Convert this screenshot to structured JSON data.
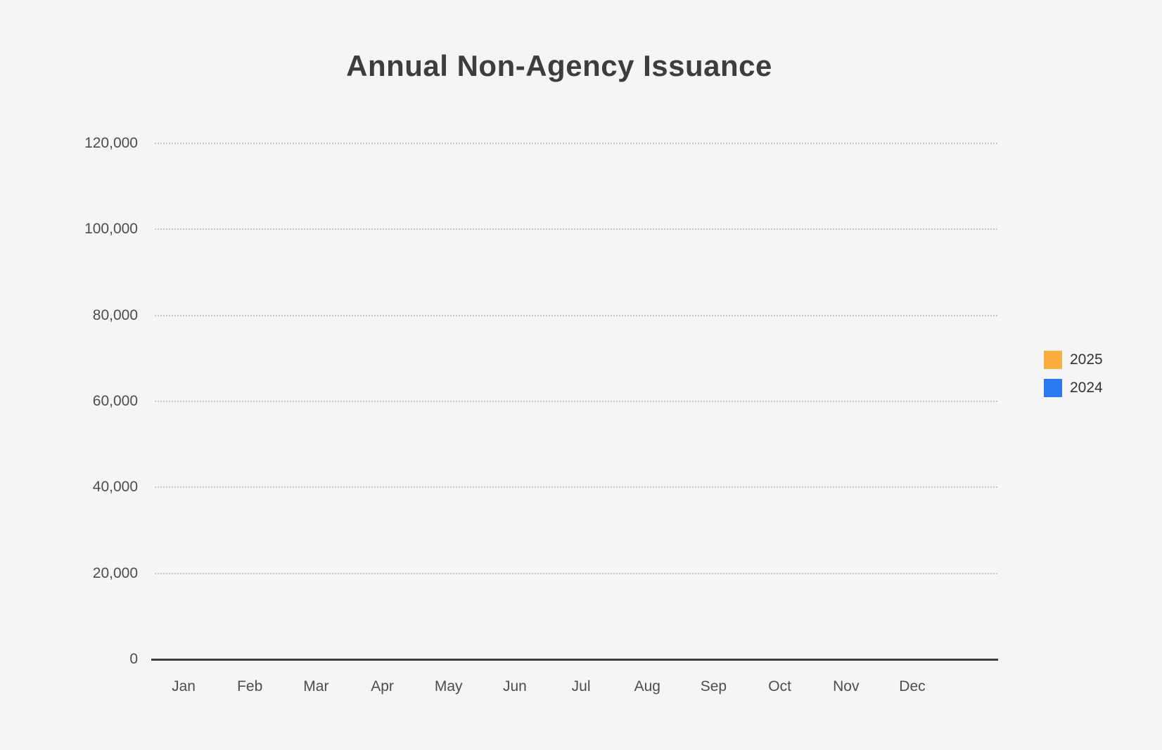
{
  "chart_data": {
    "type": "bar",
    "title": "Annual Non-Agency Issuance",
    "categories": [
      "Jan",
      "Feb",
      "Mar",
      "Apr",
      "May",
      "Jun",
      "Jul",
      "Aug",
      "Sep",
      "Oct",
      "Nov",
      "Dec"
    ],
    "series": [
      {
        "name": "2025",
        "color": "#fbae3c",
        "values": [
          null,
          null,
          null,
          null,
          null,
          null,
          null,
          null,
          null,
          null,
          null,
          null
        ]
      },
      {
        "name": "2024",
        "color": "#2979f2",
        "values": [
          null,
          null,
          null,
          null,
          null,
          null,
          null,
          null,
          null,
          null,
          null,
          null
        ]
      }
    ],
    "xlabel": "",
    "ylabel": "",
    "ylim": [
      0,
      120000
    ],
    "y_ticks": [
      {
        "value": 120000,
        "label": "120,000"
      },
      {
        "value": 100000,
        "label": "100,000"
      },
      {
        "value": 80000,
        "label": "80,000"
      },
      {
        "value": 60000,
        "label": "60,000"
      },
      {
        "value": 40000,
        "label": "40,000"
      },
      {
        "value": 20000,
        "label": "20,000"
      },
      {
        "value": 0,
        "label": "0"
      }
    ],
    "grid": "horizontal-dotted",
    "legend_position": "right",
    "plot_empty": true
  },
  "legend": {
    "items": [
      {
        "label": "2025",
        "color": "#fbae3c"
      },
      {
        "label": "2024",
        "color": "#2979f2"
      }
    ]
  },
  "colors": {
    "background": "#f5f5f6",
    "title_text": "#3d3d3d",
    "axis_line": "#3d3d3d",
    "tick_text": "#4d4d4d",
    "gridline": "#c6c6c6",
    "legend_text": "#333333"
  }
}
